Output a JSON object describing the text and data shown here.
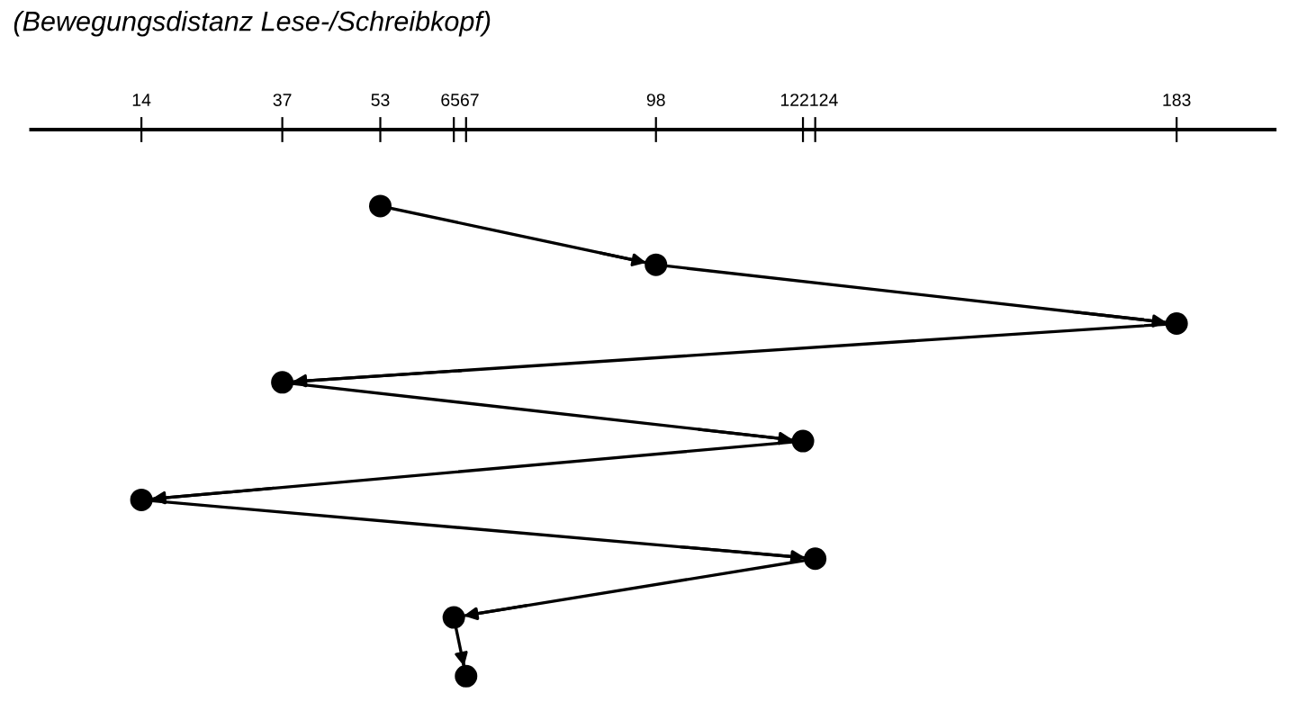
{
  "chart_data": {
    "type": "line",
    "orientation": "horizontal",
    "title": "(Bewegungsdistanz Lese-/Schreibkopf)",
    "categories": [
      null,
      null,
      null,
      null,
      null,
      null,
      null,
      null,
      null
    ],
    "series": [
      {
        "color": "#000000",
        "values": [
          53,
          98,
          183,
          37,
          122,
          14,
          124,
          65,
          67
        ]
      }
    ],
    "xlim": [
      -4,
      199
    ],
    "xticks": [
      14,
      37,
      53,
      65,
      67,
      98,
      122,
      124,
      183
    ],
    "marker": "circle",
    "line_style": "solid",
    "grid": false,
    "tick_labels": "x"
  }
}
